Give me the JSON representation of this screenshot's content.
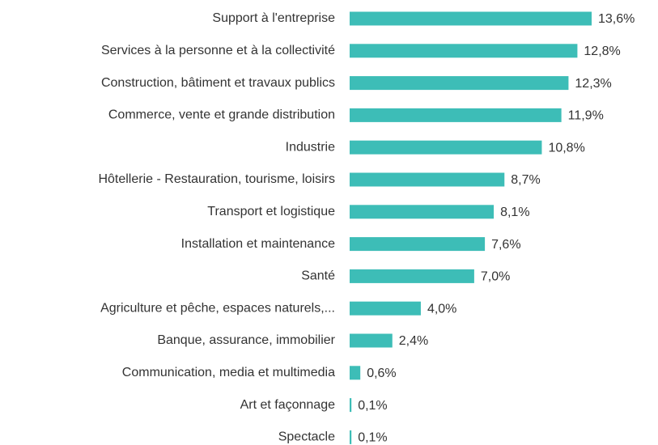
{
  "chart_data": {
    "type": "barh",
    "categories": [
      "Support à l'entreprise",
      "Services à la personne et à la collectivité",
      "Construction, bâtiment et travaux publics",
      "Commerce, vente et grande distribution",
      "Industrie",
      "Hôtellerie - Restauration, tourisme, loisirs",
      "Transport et logistique",
      "Installation et maintenance",
      "Santé",
      "Agriculture et pêche, espaces naturels,...",
      "Banque, assurance, immobilier",
      "Communication, media et multimedia",
      "Art et façonnage",
      "Spectacle"
    ],
    "values": [
      13.6,
      12.8,
      12.3,
      11.9,
      10.8,
      8.7,
      8.1,
      7.6,
      7.0,
      4.0,
      2.4,
      0.6,
      0.1,
      0.1
    ],
    "value_labels": [
      "13,6%",
      "12,8%",
      "12,3%",
      "11,9%",
      "10,8%",
      "8,7%",
      "8,1%",
      "7,6%",
      "7,0%",
      "4,0%",
      "2,4%",
      "0,6%",
      "0,1%",
      "0,1%"
    ],
    "color": "#3dbdb7"
  }
}
